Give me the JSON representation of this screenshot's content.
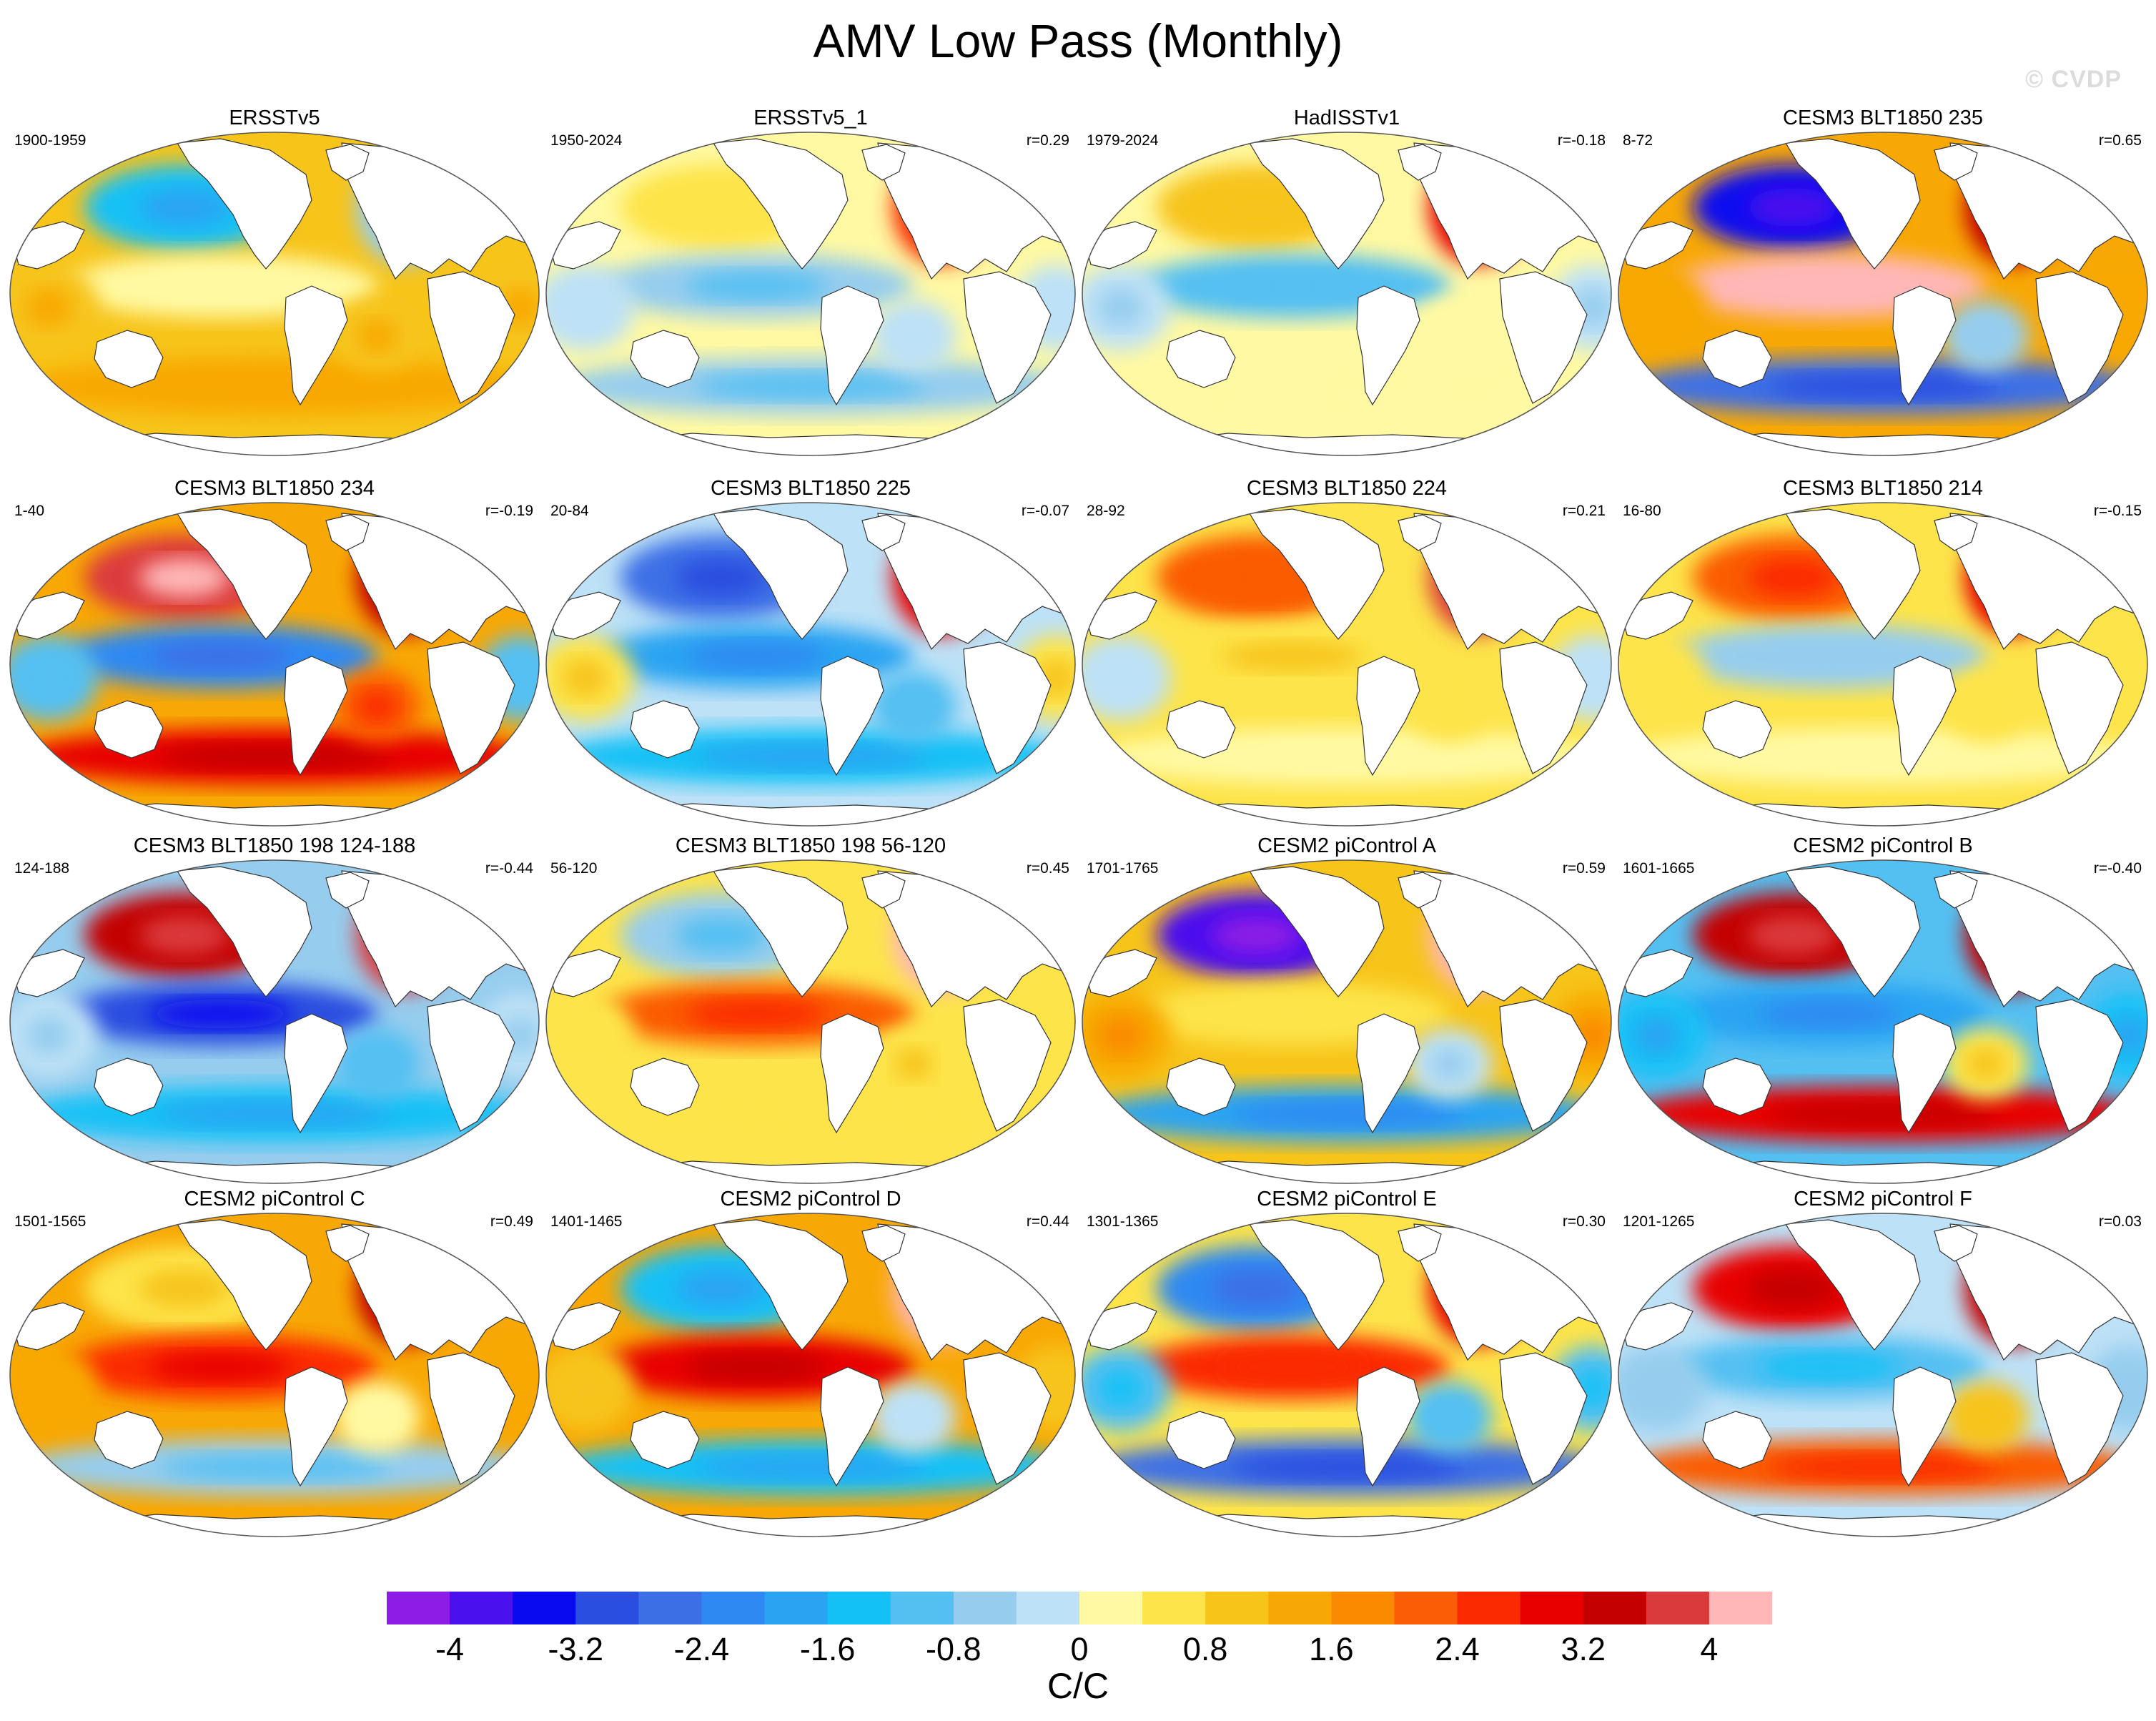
{
  "title": "AMV Low Pass (Monthly)",
  "watermark": "© CVDP",
  "panels": [
    {
      "title": "ERSSTv5",
      "left": "1900-1959",
      "right": "",
      "pattern": [
        0.9,
        0.2,
        -1.6,
        1.2,
        -0.6,
        1.1
      ]
    },
    {
      "title": "ERSSTv5_1",
      "left": "1950-2024",
      "right": "r=0.29",
      "pattern": [
        0.1,
        -0.8,
        0.4,
        -0.7,
        2.6,
        -0.2
      ]
    },
    {
      "title": "HadISSTv1",
      "left": "1979-2024",
      "right": "r=-0.18",
      "pattern": [
        0.0,
        -0.9,
        1.0,
        0.2,
        2.8,
        -0.4
      ]
    },
    {
      "title": "CESM3 BLT1850 235",
      "left": "8-72",
      "right": "r=0.65",
      "pattern": [
        1.3,
        4.0,
        -3.4,
        -2.6,
        3.4,
        1.2
      ]
    },
    {
      "title": "CESM3 BLT1850 234",
      "left": "1-40",
      "right": "r=-0.19",
      "pattern": [
        1.4,
        -2.4,
        3.6,
        2.8,
        3.2,
        -1.0
      ]
    },
    {
      "title": "CESM3 BLT1850 225",
      "left": "20-84",
      "right": "r=-0.07",
      "pattern": [
        -0.4,
        -1.8,
        -2.6,
        -1.6,
        3.0,
        0.8
      ]
    },
    {
      "title": "CESM3 BLT1850 224",
      "left": "28-92",
      "right": "r=0.21",
      "pattern": [
        0.6,
        0.8,
        2.0,
        0.2,
        3.6,
        -0.3
      ]
    },
    {
      "title": "CESM3 BLT1850 214",
      "left": "16-80",
      "right": "r=-0.15",
      "pattern": [
        0.5,
        -0.6,
        2.2,
        0.3,
        3.0,
        0.4
      ]
    },
    {
      "title": "CESM3 BLT1850 198 124-188",
      "left": "124-188",
      "right": "r=-0.44",
      "pattern": [
        -0.6,
        -3.0,
        3.2,
        -1.4,
        3.6,
        -0.4
      ]
    },
    {
      "title": "CESM3 BLT1850 198 56-120",
      "left": "56-120",
      "right": "r=0.45",
      "pattern": [
        0.8,
        2.2,
        -0.8,
        0.6,
        4.0,
        0.6
      ]
    },
    {
      "title": "CESM2 piControl A",
      "left": "1701-1765",
      "right": "r=0.59",
      "pattern": [
        1.0,
        0.6,
        -3.8,
        -1.8,
        4.0,
        1.4
      ]
    },
    {
      "title": "CESM2 piControl B",
      "left": "1601-1665",
      "right": "r=-0.40",
      "pattern": [
        -1.2,
        -2.0,
        3.4,
        2.8,
        3.4,
        -1.6
      ]
    },
    {
      "title": "CESM2 piControl C",
      "left": "1501-1565",
      "right": "r=0.49",
      "pattern": [
        1.2,
        2.6,
        0.8,
        -0.8,
        3.4,
        1.2
      ]
    },
    {
      "title": "CESM2 piControl D",
      "left": "1401-1465",
      "right": "r=0.44",
      "pattern": [
        1.2,
        3.0,
        -1.6,
        -1.6,
        4.0,
        1.0
      ]
    },
    {
      "title": "CESM2 piControl E",
      "left": "1301-1365",
      "right": "r=0.30",
      "pattern": [
        0.6,
        2.4,
        -2.2,
        -2.6,
        3.0,
        -1.2
      ]
    },
    {
      "title": "CESM2 piControl F",
      "left": "1201-1265",
      "right": "r=0.03",
      "pattern": [
        -0.4,
        -1.2,
        2.8,
        2.2,
        3.2,
        -0.6
      ]
    }
  ],
  "colorbar": {
    "colors": [
      "#8c1ce6",
      "#4b10ee",
      "#0a0af0",
      "#2a4ee0",
      "#3c6fe6",
      "#2f89f2",
      "#2aa4f2",
      "#14c1f6",
      "#54c0f2",
      "#96cdee",
      "#bde1f6",
      "#fff9a3",
      "#fde44a",
      "#f7c41a",
      "#f8a804",
      "#fa8a00",
      "#fb5c06",
      "#fb2a00",
      "#e80000",
      "#c40000",
      "#db3a3c",
      "#ffb7b7"
    ],
    "labels": [
      "-4",
      "-3.2",
      "-2.4",
      "-1.6",
      "-0.8",
      "0",
      "0.8",
      "1.6",
      "2.4",
      "3.2",
      "4"
    ],
    "units": "C/C",
    "min": -4.4,
    "max": 4.4
  },
  "colors": {
    "land": "#ffffff",
    "coast": "#333333",
    "frame": "#555555"
  }
}
